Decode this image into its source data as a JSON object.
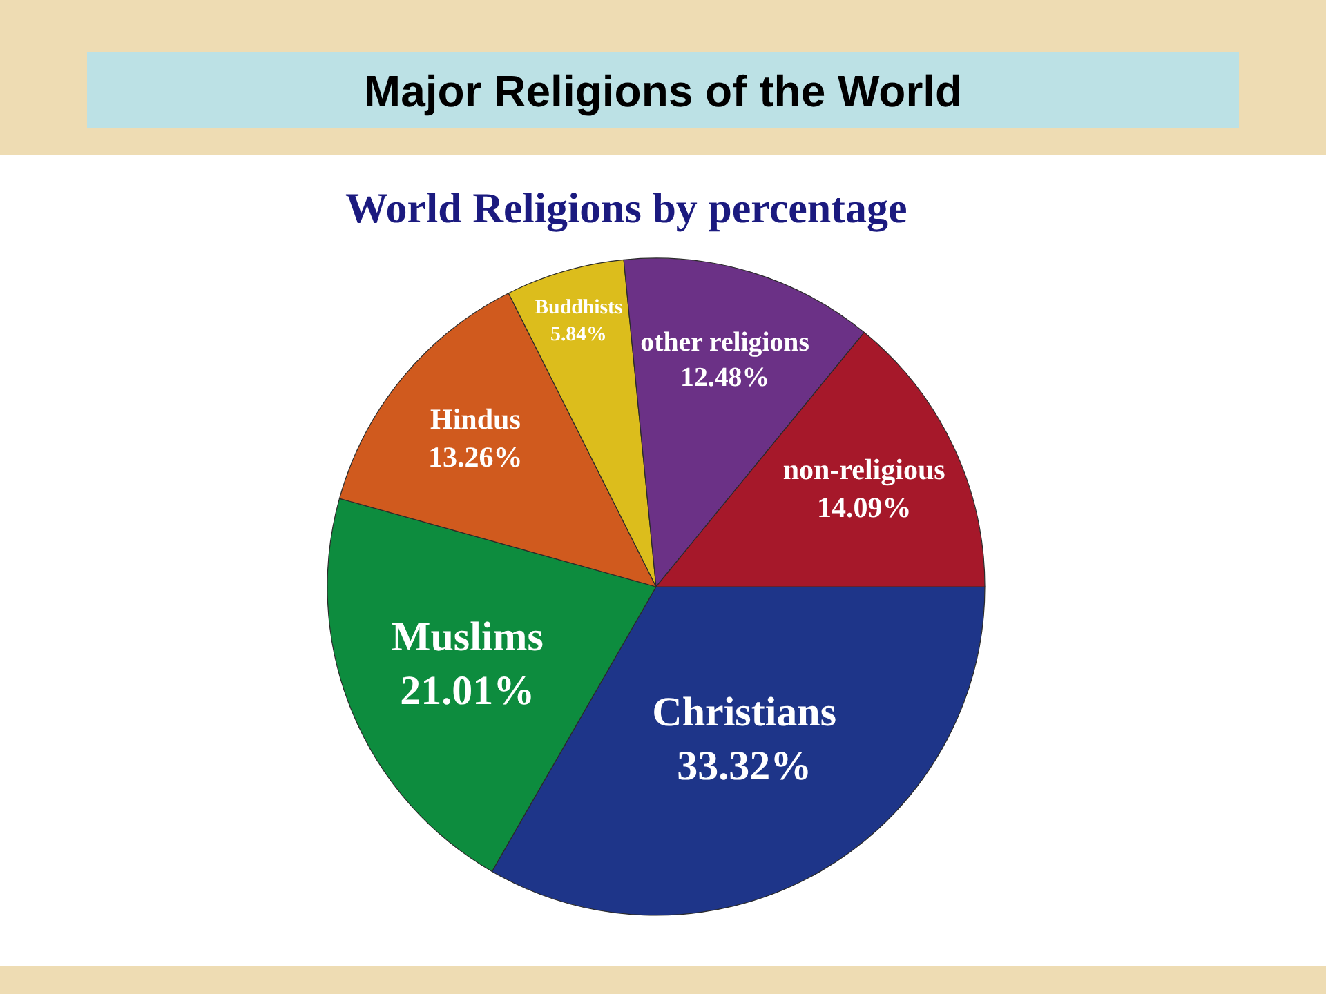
{
  "chart_data": {
    "type": "pie",
    "title": "Major Religions of the World",
    "subtitle": "World Religions by percentage",
    "categories": [
      "Christians",
      "Muslims",
      "Hindus",
      "Buddhists",
      "other religions",
      "non-religious"
    ],
    "values": [
      33.32,
      21.01,
      13.26,
      5.84,
      12.48,
      14.09
    ],
    "value_labels": [
      "33.32%",
      "21.01%",
      "13.26%",
      "5.84%",
      "12.48%",
      "14.09%"
    ],
    "colors": [
      "#1e3589",
      "#0d8c3e",
      "#d05a1e",
      "#dcbd1c",
      "#6b3186",
      "#a6182a"
    ]
  }
}
